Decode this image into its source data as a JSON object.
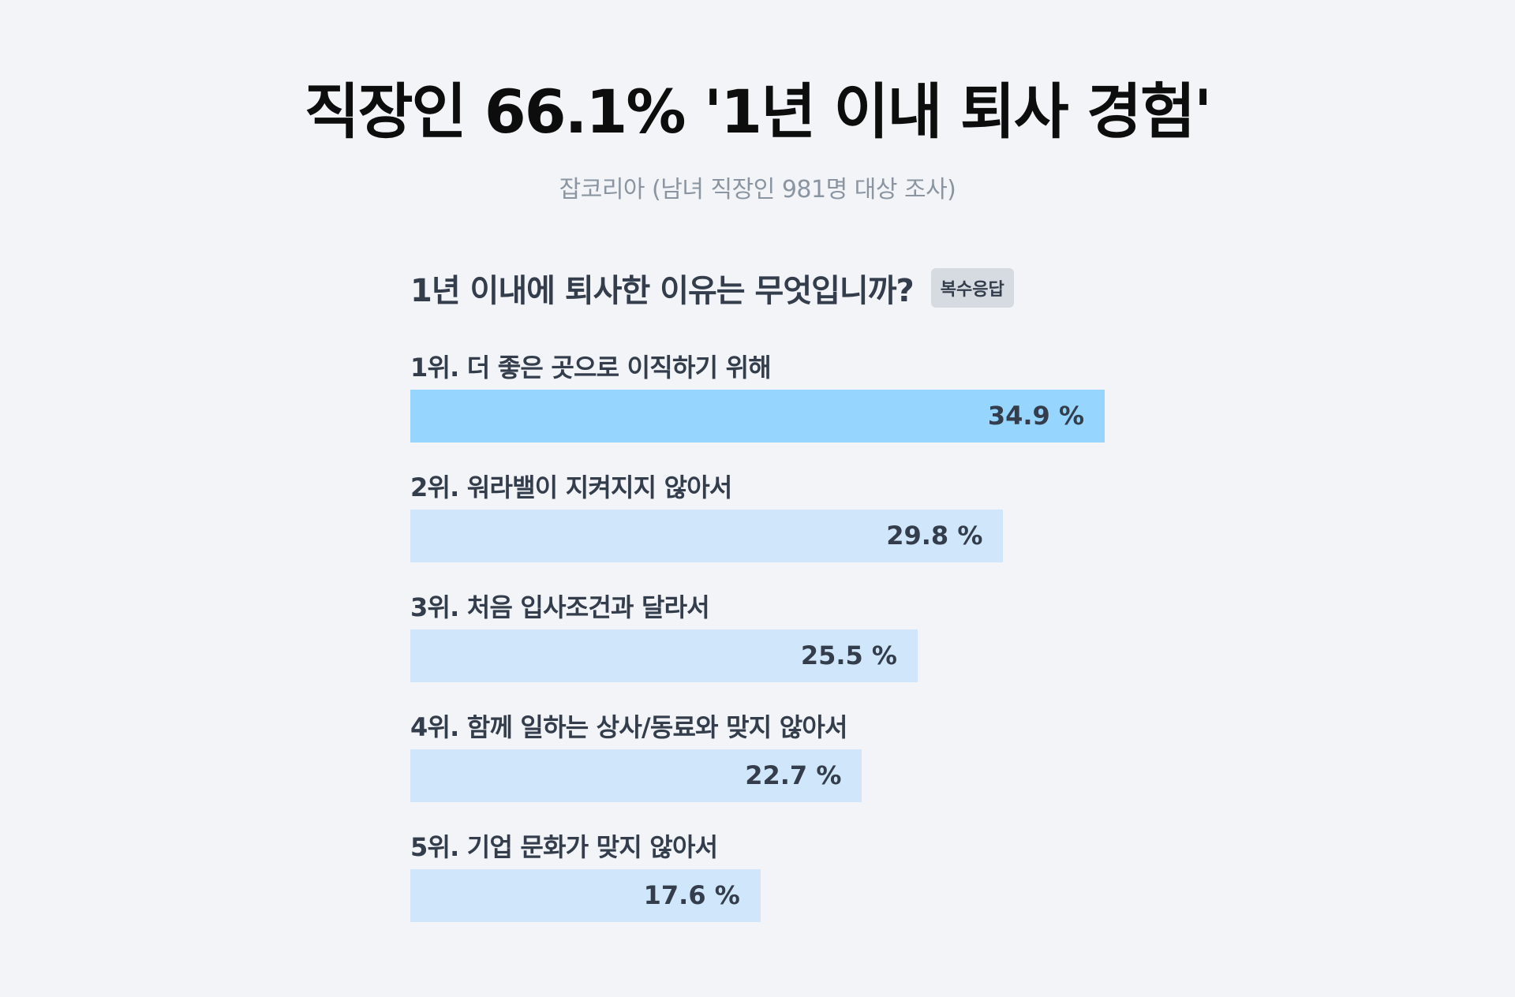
{
  "title": "직장인 66.1% '1년 이내 퇴사 경험'",
  "subtitle": "잡코리아 (남녀 직장인 981명 대상 조사)",
  "question": "1년 이내에 퇴사한 이유는 무엇입니까?",
  "badge": "복수응답",
  "colors": {
    "background": "#f2f4f7",
    "highlight_bar": "#96d5fe",
    "bar": "#d0e7fb",
    "text": "#333d4b",
    "subtitle": "#8b95a1"
  },
  "chart_data": {
    "type": "bar",
    "orientation": "horizontal",
    "title": "1년 이내에 퇴사한 이유는 무엇입니까?",
    "categories": [
      "1위. 더 좋은 곳으로 이직하기 위해",
      "2위. 워라밸이 지켜지지 않아서",
      "3위. 처음 입사조건과 달라서",
      "4위. 함께 일하는 상사/동료와 맞지 않아서",
      "5위. 기업 문화가 맞지 않아서"
    ],
    "values": [
      34.9,
      29.8,
      25.5,
      22.7,
      17.6
    ],
    "value_labels": [
      "34.9 %",
      "29.8 %",
      "25.5 %",
      "22.7 %",
      "17.6 %"
    ],
    "unit": "%",
    "highlight_index": 0
  }
}
